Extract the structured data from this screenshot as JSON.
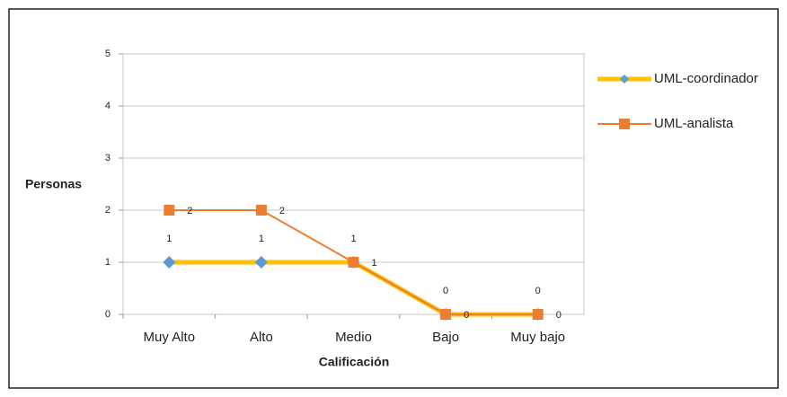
{
  "chart_data": {
    "type": "line",
    "xlabel": "Calificación",
    "ylabel": "Personas",
    "categories": [
      "Muy Alto",
      "Alto",
      "Medio",
      "Bajo",
      "Muy bajo"
    ],
    "series": [
      {
        "name": "UML-coordinador",
        "color": "#ffc000",
        "marker": "diamond",
        "marker_color": "#5b9bd5",
        "values": [
          1,
          1,
          1,
          0,
          0
        ]
      },
      {
        "name": "UML-analista",
        "color": "#ed7d31",
        "marker": "square",
        "marker_color": "#ed7d31",
        "values": [
          2,
          2,
          1,
          0,
          0
        ]
      }
    ],
    "ylim": [
      0,
      5
    ],
    "yticks": [
      0,
      1,
      2,
      3,
      4,
      5
    ],
    "grid": true,
    "legend": "right"
  }
}
